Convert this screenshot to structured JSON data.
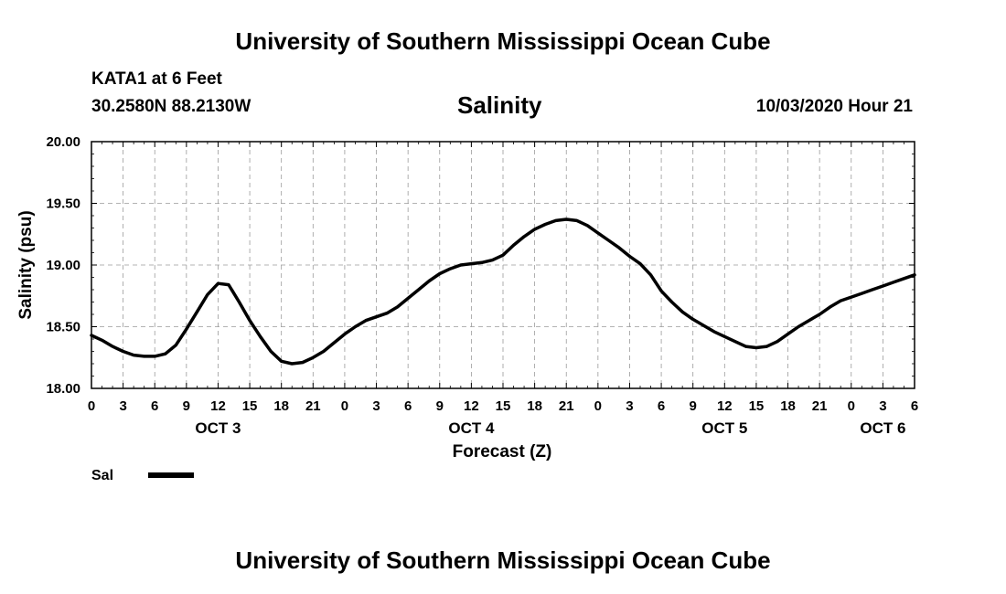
{
  "page": {
    "title_top": "University of Southern Mississippi Ocean Cube",
    "title_bottom": "University of Southern Mississippi Ocean Cube",
    "station": "KATA1 at 6 Feet",
    "coordinates": "30.2580N 88.2130W",
    "datetime": "10/03/2020 Hour 21"
  },
  "chart_data": {
    "type": "line",
    "title": "Salinity",
    "xlabel": "Forecast (Z)",
    "ylabel": "Salinity (psu)",
    "ylim": [
      18.0,
      20.0
    ],
    "xlim": [
      0,
      78
    ],
    "y_ticks": [
      "18.00",
      "18.50",
      "19.00",
      "19.50",
      "20.00"
    ],
    "x_ticks": [
      "0",
      "3",
      "6",
      "9",
      "12",
      "15",
      "18",
      "21",
      "0",
      "3",
      "6",
      "9",
      "12",
      "15",
      "18",
      "21",
      "0",
      "3",
      "6",
      "9",
      "12",
      "15",
      "18",
      "21",
      "0",
      "3",
      "6"
    ],
    "date_labels": [
      {
        "label": "OCT 3",
        "hour": 12
      },
      {
        "label": "OCT 4",
        "hour": 36
      },
      {
        "label": "OCT 5",
        "hour": 60
      },
      {
        "label": "OCT 6",
        "hour": 75
      }
    ],
    "grid": true,
    "legend": [
      {
        "name": "Sal",
        "color": "#000000"
      }
    ],
    "series": [
      {
        "name": "Sal",
        "color": "#000000",
        "x": [
          0,
          1,
          2,
          3,
          4,
          5,
          6,
          7,
          8,
          9,
          10,
          11,
          12,
          13,
          14,
          15,
          16,
          17,
          18,
          19,
          20,
          21,
          22,
          23,
          24,
          25,
          26,
          27,
          28,
          29,
          30,
          31,
          32,
          33,
          34,
          35,
          36,
          37,
          38,
          39,
          40,
          41,
          42,
          43,
          44,
          45,
          46,
          47,
          48,
          49,
          50,
          51,
          52,
          53,
          54,
          55,
          56,
          57,
          58,
          59,
          60,
          61,
          62,
          63,
          64,
          65,
          66,
          67,
          68,
          69,
          70,
          71,
          72,
          73,
          74,
          75,
          76,
          77,
          78
        ],
        "values": [
          18.43,
          18.39,
          18.34,
          18.3,
          18.27,
          18.26,
          18.26,
          18.28,
          18.35,
          18.48,
          18.62,
          18.76,
          18.85,
          18.84,
          18.7,
          18.55,
          18.42,
          18.3,
          18.22,
          18.2,
          18.21,
          18.25,
          18.3,
          18.37,
          18.44,
          18.5,
          18.55,
          18.58,
          18.61,
          18.66,
          18.73,
          18.8,
          18.87,
          18.93,
          18.97,
          19.0,
          19.01,
          19.02,
          19.04,
          19.08,
          19.16,
          19.23,
          19.29,
          19.33,
          19.36,
          19.37,
          19.36,
          19.32,
          19.26,
          19.2,
          19.14,
          19.07,
          19.01,
          18.92,
          18.79,
          18.7,
          18.62,
          18.56,
          18.51,
          18.46,
          18.42,
          18.38,
          18.34,
          18.33,
          18.34,
          18.38,
          18.44,
          18.5,
          18.55,
          18.6,
          18.66,
          18.71,
          18.74,
          18.77,
          18.8,
          18.83,
          18.86,
          18.89,
          18.92
        ]
      }
    ]
  }
}
